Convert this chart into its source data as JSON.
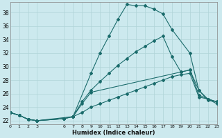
{
  "title": "",
  "xlabel": "Humidex (Indice chaleur)",
  "xlim": [
    0,
    23
  ],
  "ylim": [
    21.5,
    39.5
  ],
  "xtick_positions": [
    0,
    1,
    2,
    3,
    6,
    7,
    8,
    9,
    10,
    11,
    12,
    13,
    14,
    15,
    16,
    17,
    18,
    19,
    20,
    21,
    22,
    23
  ],
  "xtick_labels": [
    "0",
    "1",
    "2",
    "3",
    "6",
    "7",
    "8",
    "9",
    "10",
    "11",
    "12",
    "13",
    "14",
    "15",
    "16",
    "17",
    "18",
    "19",
    "20",
    "21",
    "22",
    "23"
  ],
  "ytick_positions": [
    22,
    24,
    26,
    28,
    30,
    32,
    34,
    36,
    38
  ],
  "ytick_labels": [
    "22",
    "24",
    "26",
    "28",
    "30",
    "32",
    "34",
    "36",
    "38"
  ],
  "bg_color": "#cce9ee",
  "grid_color": "#b0d4d8",
  "line_color": "#1a6b6b",
  "line1_x": [
    0,
    1,
    2,
    3,
    6,
    7,
    9,
    10,
    11,
    12,
    13,
    14,
    15,
    16,
    17,
    18,
    20,
    21,
    22,
    23
  ],
  "line1_y": [
    23.2,
    22.8,
    22.2,
    22.0,
    22.3,
    22.6,
    29.0,
    32.0,
    34.5,
    37.0,
    39.2,
    39.0,
    39.0,
    38.5,
    37.8,
    35.5,
    32.0,
    26.5,
    25.2,
    24.5
  ],
  "line2_x": [
    0,
    1,
    2,
    3,
    6,
    7,
    8,
    9,
    19,
    20,
    21,
    22,
    23
  ],
  "line2_y": [
    23.2,
    22.8,
    22.2,
    22.0,
    22.3,
    22.6,
    24.5,
    26.2,
    29.2,
    29.5,
    26.5,
    25.0,
    24.8
  ],
  "line3_x": [
    0,
    1,
    2,
    3,
    7,
    8,
    9,
    10,
    11,
    12,
    13,
    14,
    15,
    16,
    17,
    18,
    19,
    20,
    21,
    22,
    23
  ],
  "line3_y": [
    23.2,
    22.8,
    22.2,
    22.0,
    22.6,
    24.8,
    26.5,
    27.8,
    29.0,
    30.2,
    31.2,
    32.2,
    33.0,
    33.8,
    34.5,
    31.5,
    29.2,
    29.5,
    25.8,
    25.2,
    24.8
  ],
  "line4_x": [
    0,
    1,
    2,
    3,
    6,
    7,
    8,
    9,
    10,
    11,
    12,
    13,
    14,
    15,
    16,
    17,
    18,
    19,
    20,
    21,
    22,
    23
  ],
  "line4_y": [
    23.2,
    22.8,
    22.2,
    22.0,
    22.3,
    22.6,
    23.2,
    24.0,
    24.5,
    25.0,
    25.5,
    26.0,
    26.5,
    27.0,
    27.5,
    28.0,
    28.5,
    28.8,
    29.0,
    25.5,
    25.2,
    24.8
  ]
}
